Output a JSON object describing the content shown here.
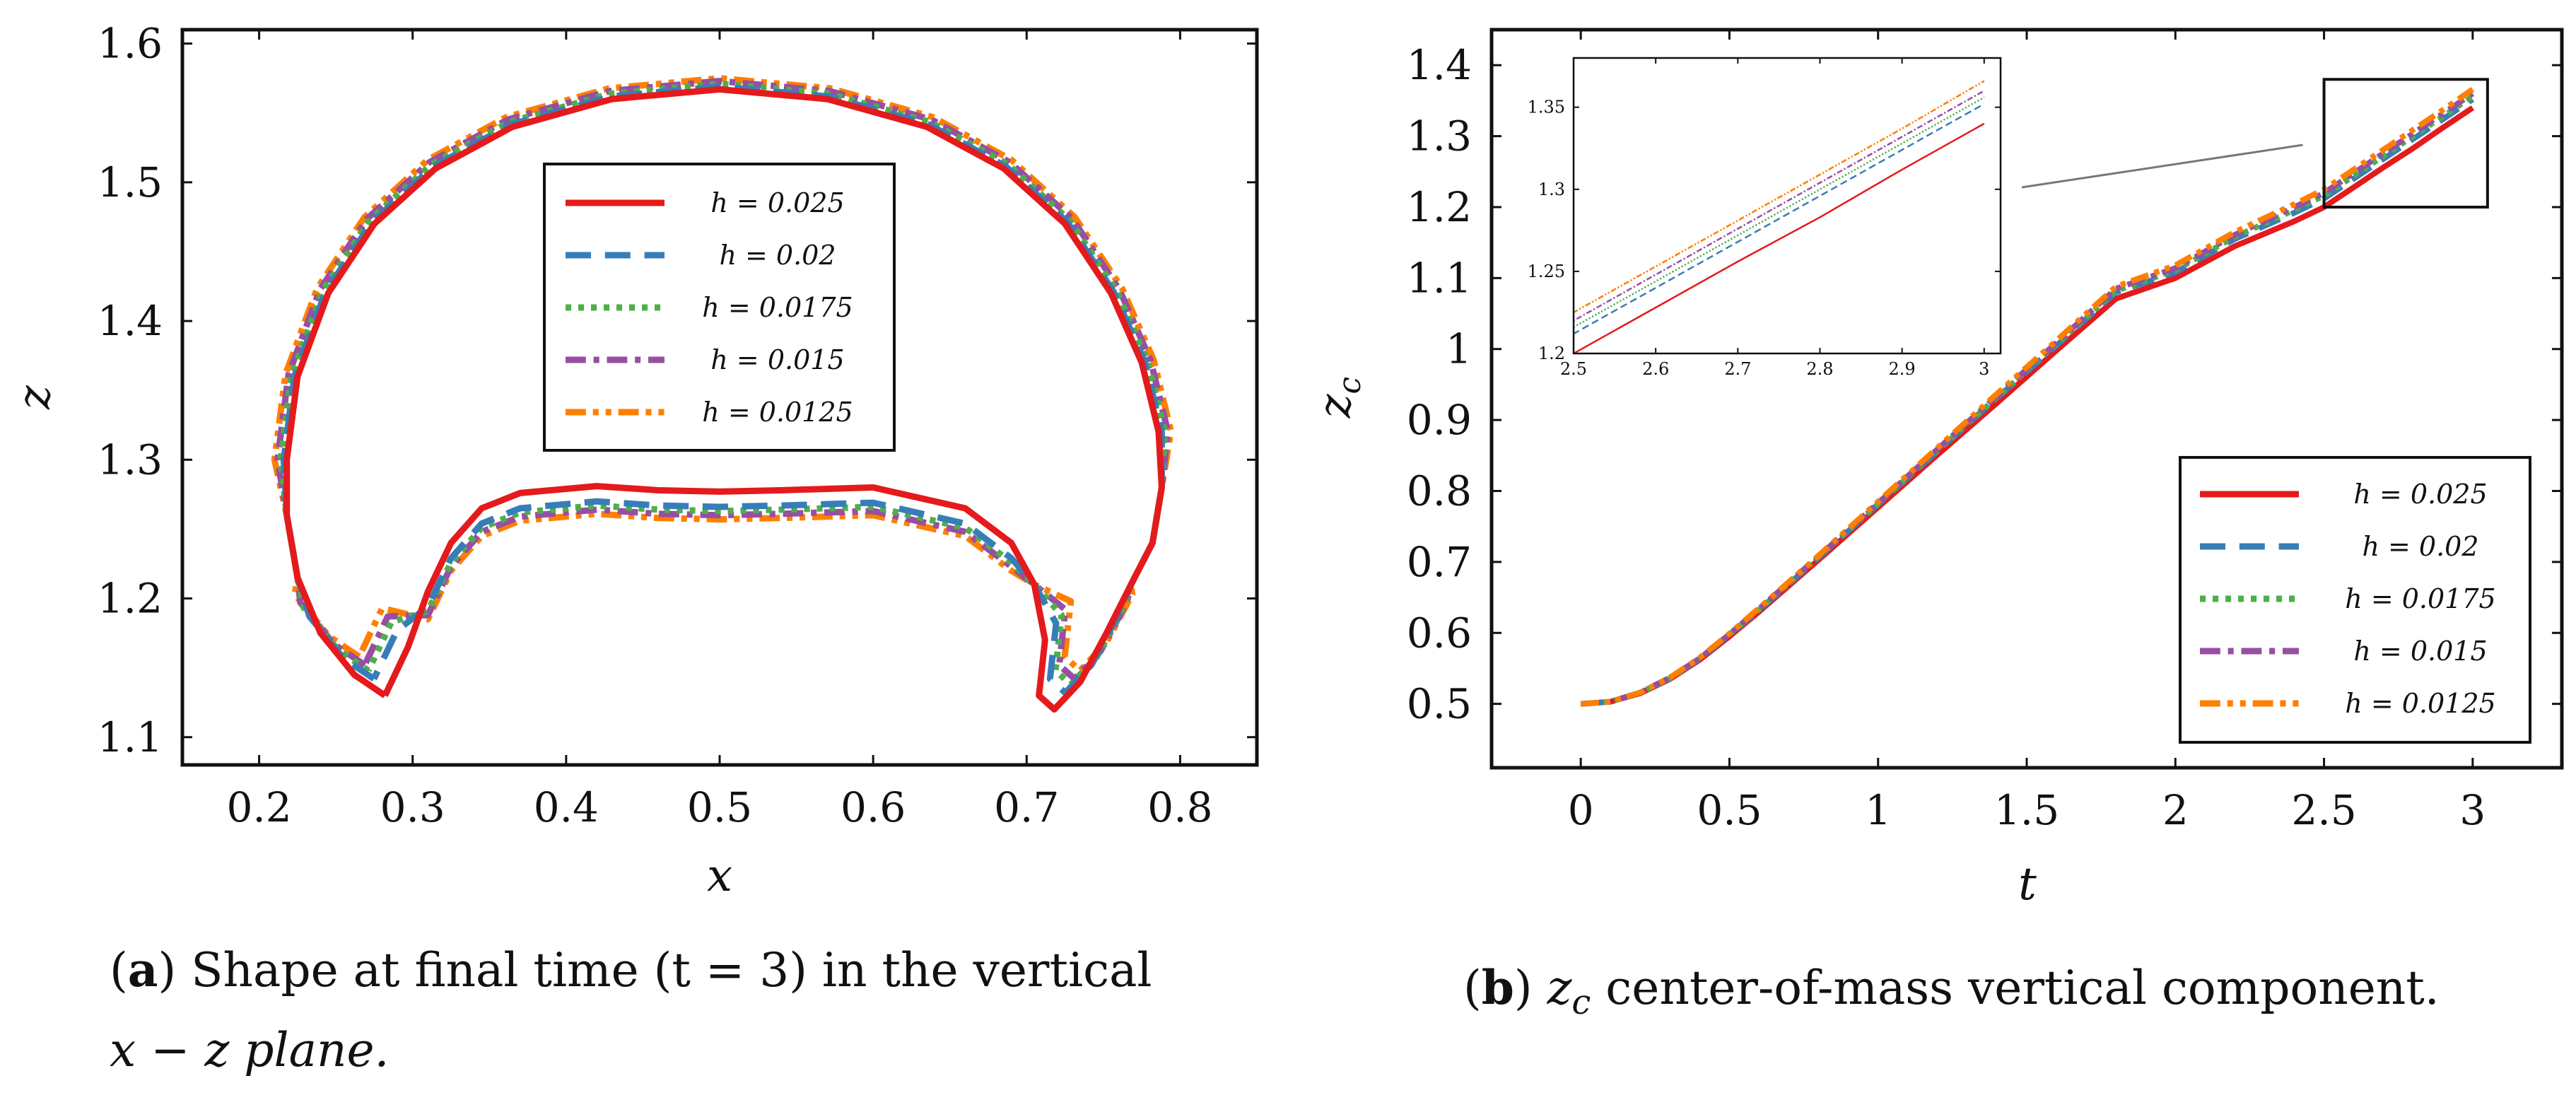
{
  "legend_entries": [
    "h = 0.025",
    "h = 0.02",
    "h = 0.0175",
    "h = 0.015",
    "h = 0.0125"
  ],
  "series_styles": [
    {
      "name": "h = 0.025",
      "color": "#e41a1c",
      "dash": "solid"
    },
    {
      "name": "h = 0.02",
      "color": "#377eb8",
      "dash": "dashed"
    },
    {
      "name": "h = 0.0175",
      "color": "#4daf4a",
      "dash": "dotted"
    },
    {
      "name": "h = 0.015",
      "color": "#984ea3",
      "dash": "dashdot"
    },
    {
      "name": "h = 0.0125",
      "color": "#ff7f00",
      "dash": "dashdotdot"
    }
  ],
  "captions": {
    "a_label": "a",
    "a_text_1": " Shape at final time (t = 3) in the vertical",
    "a_text_2": "x − z plane.",
    "b_label": "b",
    "b_text": " z",
    "b_sub": "c",
    "b_text_2": " center-of-mass vertical component."
  },
  "chart_data": [
    {
      "type": "line",
      "id": "a",
      "title": "",
      "xlabel": "x",
      "ylabel": "z",
      "xlim": [
        0.15,
        0.85
      ],
      "ylim": [
        1.08,
        1.61
      ],
      "xticks": [
        "0.2",
        "0.3",
        "0.4",
        "0.5",
        "0.6",
        "0.7",
        "0.8"
      ],
      "xtick_values": [
        0.2,
        0.3,
        0.4,
        0.5,
        0.6,
        0.7,
        0.8
      ],
      "yticks": [
        "1.1",
        "1.2",
        "1.3",
        "1.4",
        "1.5",
        "1.6"
      ],
      "ytick_values": [
        1.1,
        1.2,
        1.3,
        1.4,
        1.5,
        1.6
      ],
      "legend_position": "top-center",
      "base_contour": [
        [
          0.282,
          1.13
        ],
        [
          0.262,
          1.145
        ],
        [
          0.24,
          1.175
        ],
        [
          0.225,
          1.215
        ],
        [
          0.218,
          1.26
        ],
        [
          0.218,
          1.3
        ],
        [
          0.225,
          1.36
        ],
        [
          0.245,
          1.42
        ],
        [
          0.275,
          1.47
        ],
        [
          0.315,
          1.51
        ],
        [
          0.365,
          1.54
        ],
        [
          0.43,
          1.56
        ],
        [
          0.5,
          1.567
        ],
        [
          0.57,
          1.56
        ],
        [
          0.635,
          1.54
        ],
        [
          0.685,
          1.51
        ],
        [
          0.725,
          1.47
        ],
        [
          0.755,
          1.42
        ],
        [
          0.775,
          1.37
        ],
        [
          0.786,
          1.32
        ],
        [
          0.788,
          1.28
        ],
        [
          0.782,
          1.24
        ],
        [
          0.768,
          1.21
        ],
        [
          0.752,
          1.175
        ],
        [
          0.735,
          1.14
        ],
        [
          0.718,
          1.12
        ],
        [
          0.708,
          1.13
        ],
        [
          0.712,
          1.17
        ],
        [
          0.705,
          1.21
        ],
        [
          0.69,
          1.24
        ],
        [
          0.66,
          1.265
        ],
        [
          0.6,
          1.28
        ],
        [
          0.54,
          1.278
        ],
        [
          0.5,
          1.277
        ],
        [
          0.46,
          1.278
        ],
        [
          0.42,
          1.281
        ],
        [
          0.37,
          1.276
        ],
        [
          0.345,
          1.265
        ],
        [
          0.325,
          1.24
        ],
        [
          0.31,
          1.205
        ],
        [
          0.297,
          1.165
        ],
        [
          0.282,
          1.13
        ]
      ],
      "series": [
        {
          "name": "h = 0.025",
          "inner_z_offset": 0.0,
          "tip_shift": 0.0
        },
        {
          "name": "h = 0.02",
          "inner_z_offset": -0.011,
          "tip_shift": 0.012
        },
        {
          "name": "h = 0.0175",
          "inner_z_offset": -0.014,
          "tip_shift": 0.018
        },
        {
          "name": "h = 0.015",
          "inner_z_offset": -0.017,
          "tip_shift": 0.022
        },
        {
          "name": "h = 0.0125",
          "inner_z_offset": -0.02,
          "tip_shift": 0.028
        }
      ]
    },
    {
      "type": "line",
      "id": "b",
      "title": "",
      "xlabel": "t",
      "ylabel": "zc",
      "xlim": [
        -0.3,
        3.3
      ],
      "ylim": [
        0.41,
        1.45
      ],
      "xticks": [
        "0",
        "0.5",
        "1",
        "1.5",
        "2",
        "2.5",
        "3"
      ],
      "xtick_values": [
        0,
        0.5,
        1,
        1.5,
        2,
        2.5,
        3
      ],
      "yticks": [
        "0.5",
        "0.6",
        "0.7",
        "0.8",
        "0.9",
        "1",
        "1.1",
        "1.2",
        "1.3",
        "1.4"
      ],
      "ytick_values": [
        0.5,
        0.6,
        0.7,
        0.8,
        0.9,
        1.0,
        1.1,
        1.2,
        1.3,
        1.4
      ],
      "legend_position": "bottom-right",
      "x": [
        0,
        0.1,
        0.2,
        0.3,
        0.4,
        0.5,
        0.6,
        0.8,
        1.0,
        1.2,
        1.4,
        1.6,
        1.8,
        2.0,
        2.2,
        2.4,
        2.5,
        2.6,
        2.7,
        2.8,
        2.9,
        3.0
      ],
      "series": [
        {
          "name": "h = 0.025",
          "values": [
            0.5,
            0.503,
            0.515,
            0.535,
            0.562,
            0.595,
            0.63,
            0.703,
            0.777,
            0.851,
            0.924,
            0.998,
            1.071,
            1.1,
            1.145,
            1.18,
            1.2,
            1.228,
            1.256,
            1.283,
            1.312,
            1.34
          ]
        },
        {
          "name": "h = 0.02",
          "values": [
            0.5,
            0.503,
            0.516,
            0.536,
            0.563,
            0.597,
            0.632,
            0.706,
            0.781,
            0.856,
            0.931,
            1.005,
            1.08,
            1.108,
            1.155,
            1.192,
            1.212,
            1.24,
            1.268,
            1.296,
            1.324,
            1.352
          ]
        },
        {
          "name": "h = 0.0175",
          "values": [
            0.5,
            0.503,
            0.516,
            0.536,
            0.564,
            0.598,
            0.633,
            0.707,
            0.782,
            0.857,
            0.932,
            1.007,
            1.082,
            1.111,
            1.158,
            1.196,
            1.216,
            1.244,
            1.272,
            1.3,
            1.328,
            1.356
          ]
        },
        {
          "name": "h = 0.015",
          "values": [
            0.5,
            0.503,
            0.516,
            0.537,
            0.564,
            0.598,
            0.634,
            0.708,
            0.783,
            0.859,
            0.934,
            1.009,
            1.085,
            1.114,
            1.161,
            1.2,
            1.22,
            1.248,
            1.276,
            1.304,
            1.332,
            1.36
          ]
        },
        {
          "name": "h = 0.0125",
          "values": [
            0.5,
            0.503,
            0.516,
            0.537,
            0.565,
            0.599,
            0.635,
            0.709,
            0.785,
            0.861,
            0.937,
            1.012,
            1.088,
            1.118,
            1.165,
            1.204,
            1.225,
            1.253,
            1.281,
            1.309,
            1.337,
            1.366
          ]
        }
      ],
      "zoom_box": {
        "xlim": [
          2.5,
          3.05
        ],
        "ylim": [
          1.2,
          1.38
        ]
      },
      "inset": {
        "xlim": [
          2.5,
          3.02
        ],
        "ylim": [
          1.2,
          1.38
        ],
        "xticks": [
          "2.5",
          "2.6",
          "2.7",
          "2.8",
          "2.9",
          "3"
        ],
        "xtick_values": [
          2.5,
          2.6,
          2.7,
          2.8,
          2.9,
          3.0
        ],
        "yticks": [
          "1.2",
          "1.25",
          "1.3",
          "1.35"
        ],
        "ytick_values": [
          1.2,
          1.25,
          1.3,
          1.35
        ]
      }
    }
  ]
}
